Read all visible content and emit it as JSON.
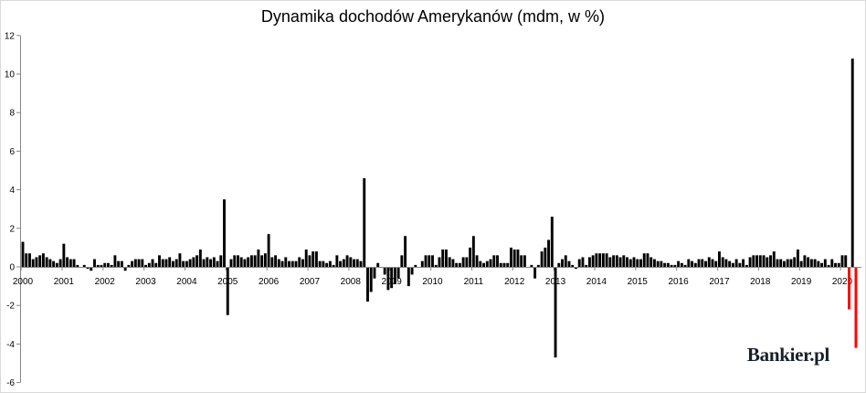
{
  "chart_data": {
    "type": "bar",
    "title": "Dynamika dochodów Amerykanów (mdm, w %)",
    "ylim": [
      -6,
      12
    ],
    "yticks": [
      -6,
      -4,
      -2,
      0,
      2,
      4,
      6,
      8,
      10,
      12
    ],
    "grid": false,
    "legend": false,
    "bar_color": "#000000",
    "highlight_color": "#ff0000",
    "years": [
      {
        "year": "2000",
        "values": [
          1.3,
          0.7,
          0.7,
          0.4,
          0.5,
          0.6,
          0.7,
          0.5,
          0.4,
          0.3,
          0.2,
          0.4
        ]
      },
      {
        "year": "2001",
        "values": [
          1.2,
          0.5,
          0.4,
          0.4,
          0.1,
          0.0,
          0.1,
          -0.1,
          -0.2,
          0.4,
          0.1,
          0.1
        ]
      },
      {
        "year": "2002",
        "values": [
          0.2,
          0.2,
          0.1,
          0.6,
          0.3,
          0.3,
          -0.2,
          0.1,
          0.3,
          0.4,
          0.4,
          0.4
        ]
      },
      {
        "year": "2003",
        "values": [
          0.1,
          0.2,
          0.4,
          0.2,
          0.6,
          0.4,
          0.4,
          0.5,
          0.3,
          0.4,
          0.7,
          0.3
        ]
      },
      {
        "year": "2004",
        "values": [
          0.3,
          0.4,
          0.5,
          0.6,
          0.9,
          0.4,
          0.5,
          0.4,
          0.5,
          0.3,
          0.6,
          3.5
        ]
      },
      {
        "year": "2005",
        "values": [
          -2.5,
          0.4,
          0.6,
          0.6,
          0.5,
          0.4,
          0.5,
          0.6,
          0.6,
          0.9,
          0.6,
          0.7
        ]
      },
      {
        "year": "2006",
        "values": [
          1.7,
          0.5,
          0.6,
          0.4,
          0.3,
          0.5,
          0.3,
          0.3,
          0.3,
          0.5,
          0.4,
          0.9
        ]
      },
      {
        "year": "2007",
        "values": [
          0.6,
          0.8,
          0.8,
          0.3,
          0.3,
          0.2,
          0.3,
          0.1,
          0.6,
          0.3,
          0.4,
          0.6
        ]
      },
      {
        "year": "2008",
        "values": [
          0.5,
          0.4,
          0.4,
          0.3,
          4.6,
          -1.8,
          -1.3,
          -0.6,
          0.2,
          0.0,
          -0.4,
          -1.2
        ]
      },
      {
        "year": "2009",
        "values": [
          -1.1,
          -0.9,
          -0.6,
          0.6,
          1.6,
          -1.0,
          -0.4,
          0.1,
          0.0,
          0.3,
          0.6,
          0.6
        ]
      },
      {
        "year": "2010",
        "values": [
          0.6,
          0.1,
          0.5,
          0.9,
          0.9,
          0.5,
          0.4,
          0.2,
          0.2,
          0.5,
          0.5,
          1.0
        ]
      },
      {
        "year": "2011",
        "values": [
          1.6,
          0.6,
          0.3,
          0.2,
          0.3,
          0.4,
          0.6,
          0.6,
          0.2,
          0.2,
          0.2,
          1.0
        ]
      },
      {
        "year": "2012",
        "values": [
          0.9,
          0.9,
          0.6,
          0.6,
          0.0,
          0.1,
          -0.6,
          0.1,
          0.8,
          1.0,
          1.4,
          2.6
        ]
      },
      {
        "year": "2013",
        "values": [
          -4.7,
          0.2,
          0.4,
          0.6,
          0.3,
          0.1,
          -0.1,
          0.4,
          0.5,
          0.1,
          0.5,
          0.6
        ]
      },
      {
        "year": "2014",
        "values": [
          0.7,
          0.7,
          0.7,
          0.7,
          0.5,
          0.6,
          0.6,
          0.5,
          0.6,
          0.5,
          0.4,
          0.5
        ]
      },
      {
        "year": "2015",
        "values": [
          0.4,
          0.4,
          0.7,
          0.7,
          0.5,
          0.4,
          0.3,
          0.3,
          0.2,
          0.2,
          0.1,
          0.1
        ]
      },
      {
        "year": "2016",
        "values": [
          0.3,
          0.2,
          0.1,
          0.4,
          0.3,
          0.2,
          0.4,
          0.4,
          0.3,
          0.5,
          0.4,
          0.3
        ]
      },
      {
        "year": "2017",
        "values": [
          0.8,
          0.5,
          0.4,
          0.3,
          0.2,
          0.4,
          0.2,
          0.4,
          0.1,
          0.5,
          0.6,
          0.6
        ]
      },
      {
        "year": "2018",
        "values": [
          0.6,
          0.6,
          0.5,
          0.6,
          0.8,
          0.4,
          0.4,
          0.3,
          0.4,
          0.4,
          0.5,
          0.9
        ]
      },
      {
        "year": "2019",
        "values": [
          0.3,
          0.6,
          0.5,
          0.4,
          0.4,
          0.3,
          0.2,
          0.4,
          0.1,
          0.4,
          0.2,
          0.2
        ]
      },
      {
        "year": "2020",
        "values": [
          0.6,
          0.6,
          -2.2,
          10.8,
          -4.2
        ],
        "highlight_months": [
          3,
          5
        ]
      }
    ]
  },
  "watermark": {
    "text": "Bankier.pl"
  }
}
